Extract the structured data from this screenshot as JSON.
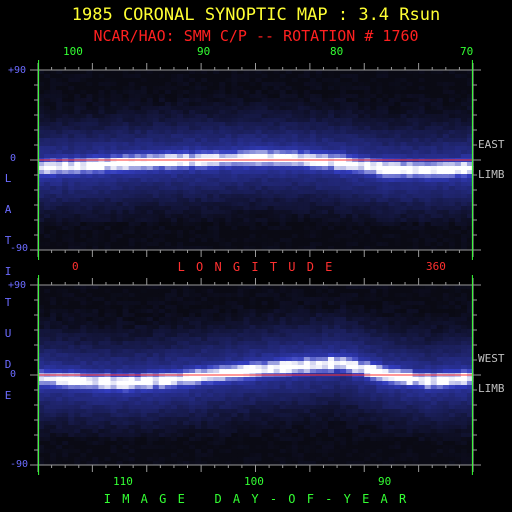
{
  "header": {
    "title": "1985 CORONAL SYNOPTIC MAP : 3.4 Rsun",
    "subtitle": "NCAR/HAO: SMM C/P -- ROTATION # 1760"
  },
  "chart_data": [
    {
      "type": "heatmap",
      "name": "east-limb",
      "side_label": [
        "EAST",
        "LIMB"
      ],
      "ylabel": "LATITUDE",
      "ylim": [
        -90,
        90
      ],
      "yticks": [
        "+90",
        "0",
        "-90"
      ],
      "top_axis": {
        "ticks": [
          "100",
          "90",
          "80",
          "70"
        ],
        "values": [
          100,
          90,
          80,
          70
        ],
        "xlim": [
          101.8,
          68.2
        ]
      },
      "bottom_axis": {
        "ticks": [
          "0",
          "360"
        ],
        "values": [
          0,
          360
        ],
        "xlim": [
          -0.5,
          360.5
        ],
        "label": "LONGITUDE"
      },
      "green_lines_longitude": [
        0,
        360
      ],
      "equator_line_lat": 0,
      "bright_band": {
        "x_norm": [
          0.0,
          0.1,
          0.2,
          0.3,
          0.4,
          0.5,
          0.6,
          0.7,
          0.8,
          0.9,
          1.0
        ],
        "lat": [
          -8,
          -6,
          -3,
          -1,
          0,
          2,
          1,
          -3,
          -9,
          -10,
          -8
        ]
      }
    },
    {
      "type": "heatmap",
      "name": "west-limb",
      "side_label": [
        "WEST",
        "LIMB"
      ],
      "ylim": [
        -90,
        90
      ],
      "yticks": [
        "+90",
        "0",
        "-90"
      ],
      "bottom_axis": {
        "ticks": [
          "110",
          "100",
          "90"
        ],
        "values": [
          110,
          100,
          90
        ],
        "xlim": [
          116.7,
          83.1
        ],
        "label": "IMAGE DAY-OF-YEAR"
      },
      "green_lines_longitude": [
        0,
        360
      ],
      "equator_line_lat": 0,
      "bright_band": {
        "x_norm": [
          0.0,
          0.1,
          0.2,
          0.3,
          0.4,
          0.5,
          0.6,
          0.7,
          0.8,
          0.9,
          1.0
        ],
        "lat": [
          -3,
          -6,
          -8,
          -5,
          0,
          5,
          9,
          12,
          0,
          -6,
          -3
        ]
      }
    }
  ],
  "colors": {
    "title": "#ffff33",
    "subtitle": "#ff2020",
    "latitude": "#6b6bff",
    "green_axis": "#33ff33",
    "red_axis": "#ff3030",
    "side_label": "#c0c0c0"
  }
}
